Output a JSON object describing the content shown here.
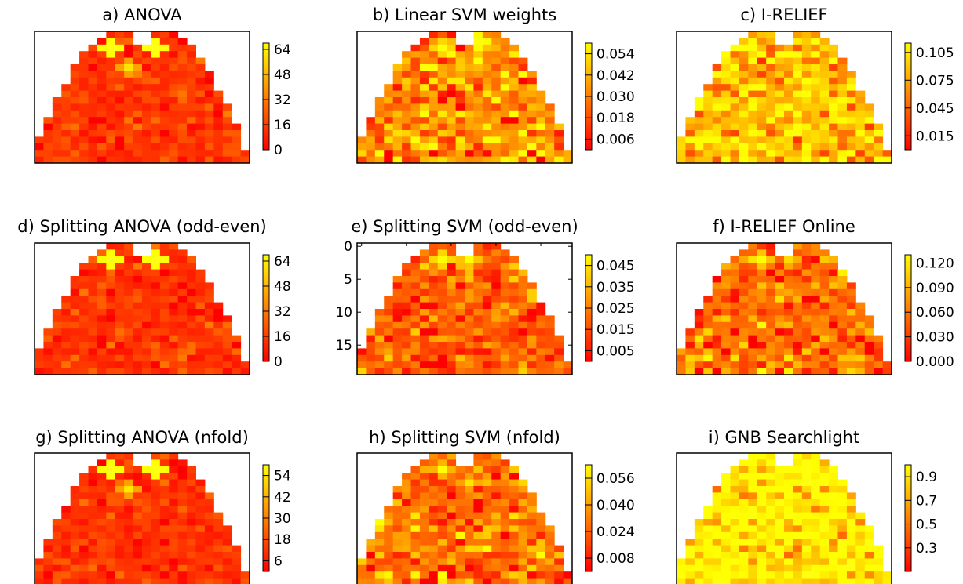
{
  "chart_data": [
    {
      "type": "heatmap",
      "title": "a) ANOVA",
      "colorbar_ticks": [
        "64",
        "48",
        "32",
        "16",
        "0"
      ],
      "vmin": 0,
      "vmax": 68,
      "seed": 11,
      "hot": [
        [
          8,
          16,
          0.85
        ],
        [
          13,
          16,
          0.9
        ],
        [
          2,
          19,
          0.6
        ],
        [
          10,
          19,
          0.45
        ]
      ],
      "background": 0.1,
      "spread": 0.16,
      "axis_ticks": null
    },
    {
      "type": "heatmap",
      "title": "b) Linear SVM weights",
      "colorbar_ticks": [
        "0.054",
        "0.042",
        "0.030",
        "0.018",
        "0.006"
      ],
      "vmin": 0,
      "vmax": 0.06,
      "seed": 23,
      "hot": [
        [
          9,
          16,
          0.6
        ],
        [
          13,
          15,
          0.7
        ],
        [
          3,
          19,
          0.5
        ]
      ],
      "background": 0.28,
      "spread": 0.38,
      "axis_ticks": null
    },
    {
      "type": "heatmap",
      "title": "c) I-RELIEF",
      "colorbar_ticks": [
        "0.105",
        "0.075",
        "0.045",
        "0.015"
      ],
      "vmin": 0,
      "vmax": 0.115,
      "seed": 37,
      "hot": [
        [
          8,
          16,
          0.55
        ],
        [
          12,
          17,
          0.5
        ]
      ],
      "background": 0.38,
      "spread": 0.34,
      "axis_ticks": null
    },
    {
      "type": "heatmap",
      "title": "d) Splitting ANOVA (odd-even)",
      "colorbar_ticks": [
        "64",
        "48",
        "32",
        "16",
        "0"
      ],
      "vmin": 0,
      "vmax": 68,
      "seed": 41,
      "hot": [
        [
          8,
          16,
          0.8
        ],
        [
          13,
          16,
          0.85
        ],
        [
          2,
          20,
          0.5
        ]
      ],
      "background": 0.1,
      "spread": 0.15,
      "axis_ticks": null
    },
    {
      "type": "heatmap",
      "title": "e) Splitting SVM (odd-even)",
      "colorbar_ticks": [
        "0.045",
        "0.035",
        "0.025",
        "0.015",
        "0.005"
      ],
      "vmin": 0,
      "vmax": 0.05,
      "seed": 53,
      "hot": [
        [
          9,
          16,
          0.6
        ],
        [
          12,
          16,
          0.55
        ],
        [
          2,
          20,
          0.8
        ]
      ],
      "background": 0.18,
      "spread": 0.3,
      "axis_ticks": {
        "labels": [
          "0",
          "5",
          "10",
          "15"
        ],
        "rows": [
          0,
          5,
          10,
          15
        ]
      }
    },
    {
      "type": "heatmap",
      "title": "f) I-RELIEF Online",
      "colorbar_ticks": [
        "0.120",
        "0.090",
        "0.060",
        "0.030",
        "0.000"
      ],
      "vmin": 0,
      "vmax": 0.13,
      "seed": 67,
      "hot": [
        [
          9,
          16,
          0.55
        ]
      ],
      "background": 0.22,
      "spread": 0.3,
      "axis_ticks": null
    },
    {
      "type": "heatmap",
      "title": "g) Splitting ANOVA (nfold)",
      "colorbar_ticks": [
        "54",
        "42",
        "30",
        "18",
        "6"
      ],
      "vmin": 0,
      "vmax": 60,
      "seed": 79,
      "hot": [
        [
          8,
          16,
          0.85
        ],
        [
          13,
          16,
          0.8
        ],
        [
          10,
          19,
          0.45
        ]
      ],
      "background": 0.1,
      "spread": 0.15,
      "axis_ticks": null
    },
    {
      "type": "heatmap",
      "title": "h) Splitting SVM (nfold)",
      "colorbar_ticks": [
        "0.056",
        "0.040",
        "0.024",
        "0.008"
      ],
      "vmin": 0,
      "vmax": 0.064,
      "seed": 83,
      "hot": [
        [
          9,
          16,
          0.5
        ],
        [
          12,
          18,
          0.45
        ]
      ],
      "background": 0.22,
      "spread": 0.35,
      "axis_ticks": null
    },
    {
      "type": "heatmap",
      "title": "i) GNB Searchlight",
      "colorbar_ticks": [
        "0.9",
        "0.7",
        "0.5",
        "0.3"
      ],
      "vmin": 0.1,
      "vmax": 1.0,
      "seed": 97,
      "hot": [
        [
          10,
          15,
          0.35
        ]
      ],
      "background": 0.48,
      "spread": 0.32,
      "axis_ticks": null
    }
  ]
}
